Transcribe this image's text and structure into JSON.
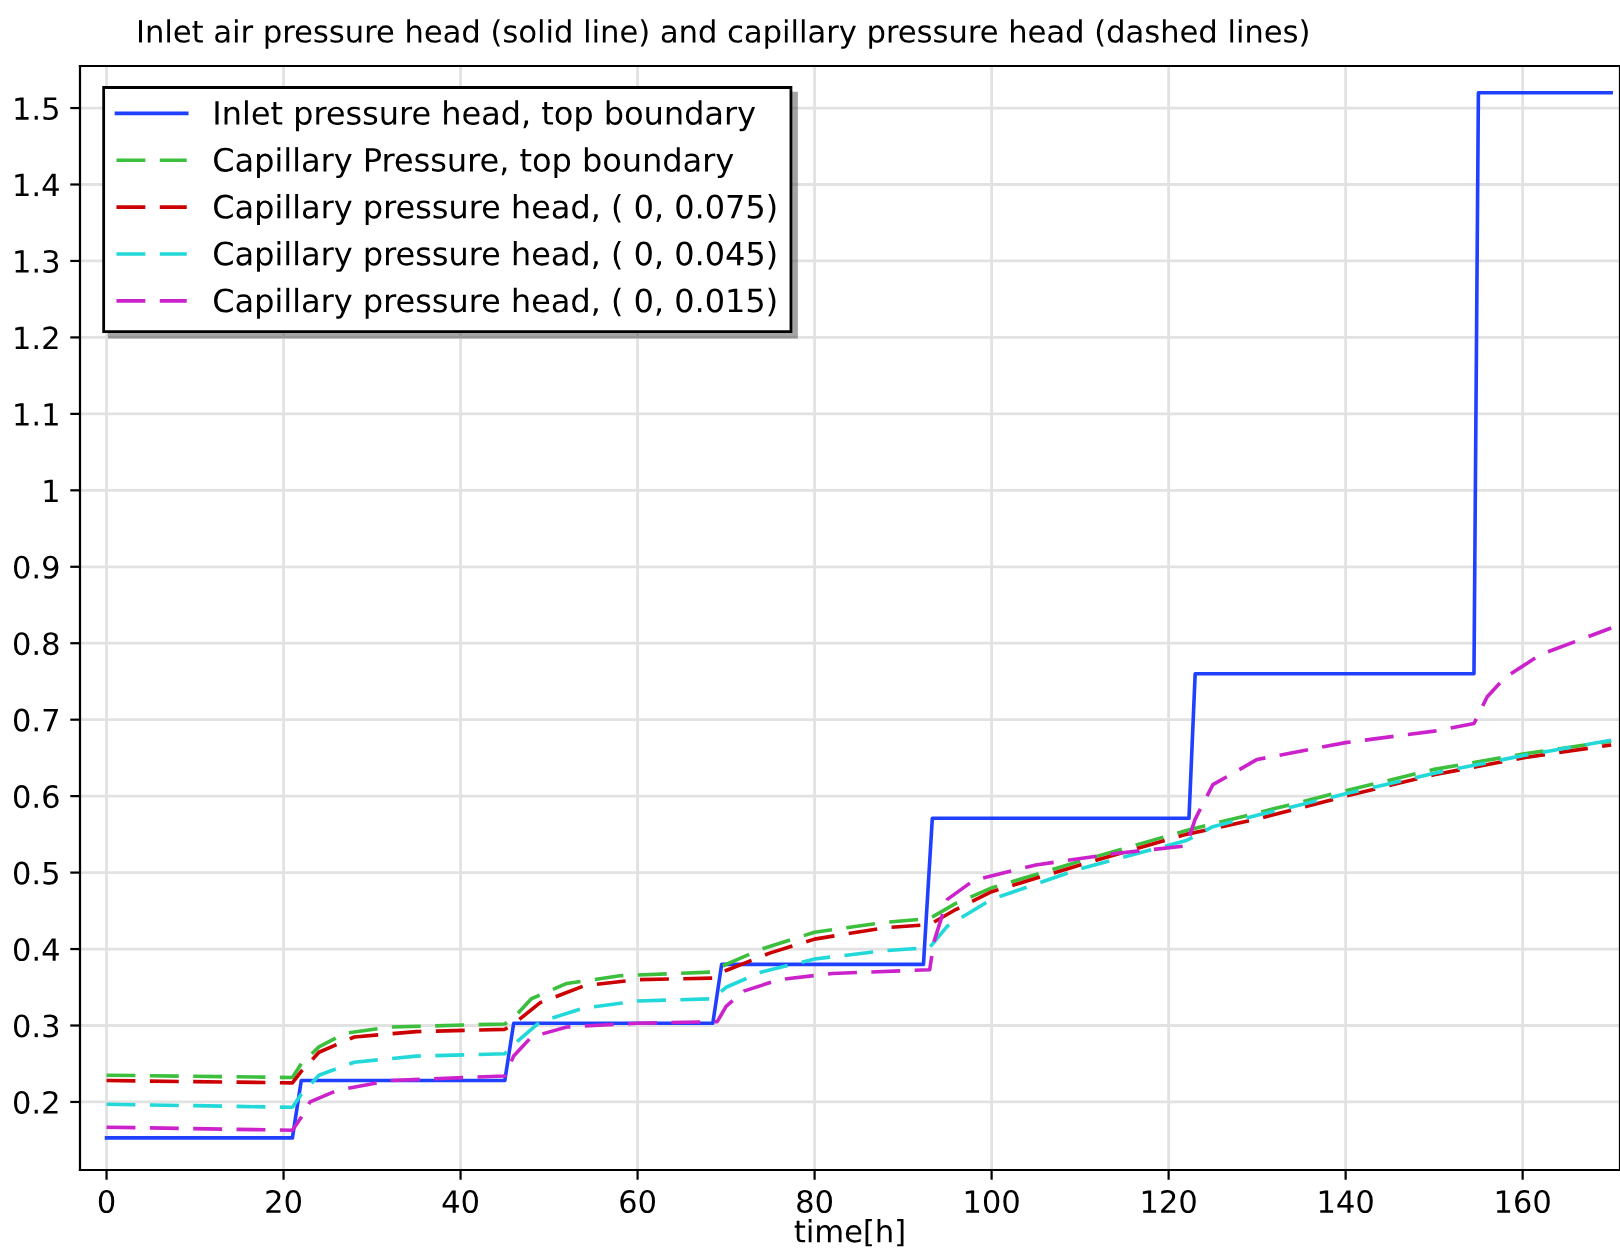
{
  "chart_data": {
    "type": "line",
    "title": "Inlet air pressure head (solid line) and capillary pressure head (dashed lines)",
    "xlabel": "time[h]",
    "xlim": [
      -3,
      171
    ],
    "ylim": [
      0.111,
      1.555
    ],
    "xticks": [
      0,
      20,
      40,
      60,
      80,
      100,
      120,
      140,
      160
    ],
    "yticks": [
      0.2,
      0.3,
      0.4,
      0.5,
      0.6,
      0.7,
      0.8,
      0.9,
      1,
      1.1,
      1.2,
      1.3,
      1.4,
      1.5
    ],
    "grid": true,
    "legend": "top left",
    "series": [
      {
        "name": "Inlet pressure head, top boundary",
        "color": "#2040ff",
        "line_style": "solid",
        "x": [
          0,
          21,
          22,
          45,
          46,
          68.5,
          69.5,
          92.3,
          93.3,
          122.3,
          123,
          154.5,
          155,
          170
        ],
        "values": [
          0.153,
          0.153,
          0.228,
          0.228,
          0.303,
          0.303,
          0.38,
          0.38,
          0.571,
          0.571,
          0.76,
          0.76,
          1.52,
          1.52
        ]
      },
      {
        "name": "Capillary Pressure, top boundary",
        "color": "#3cbf3c",
        "line_style": "dashed",
        "x": [
          0,
          21,
          22,
          24,
          27,
          32,
          45,
          46,
          48,
          52,
          58,
          68.5,
          70,
          74,
          80,
          88,
          93,
          96,
          100,
          110,
          122,
          130,
          140,
          150,
          160,
          170
        ],
        "values": [
          0.235,
          0.232,
          0.25,
          0.272,
          0.29,
          0.298,
          0.302,
          0.31,
          0.335,
          0.355,
          0.365,
          0.37,
          0.38,
          0.4,
          0.422,
          0.435,
          0.44,
          0.46,
          0.48,
          0.515,
          0.555,
          0.578,
          0.607,
          0.635,
          0.655,
          0.672
        ]
      },
      {
        "name": "Capillary pressure head, ( 0, 0.075)",
        "color": "#cc0000",
        "line_style": "dashed",
        "x": [
          0,
          21,
          22,
          24,
          28,
          35,
          45,
          46,
          49,
          54,
          60,
          68.5,
          70,
          75,
          80,
          88,
          93,
          96,
          100,
          110,
          122,
          130,
          140,
          150,
          160,
          170
        ],
        "values": [
          0.228,
          0.225,
          0.24,
          0.265,
          0.285,
          0.292,
          0.295,
          0.302,
          0.33,
          0.352,
          0.36,
          0.362,
          0.372,
          0.395,
          0.413,
          0.428,
          0.432,
          0.452,
          0.475,
          0.51,
          0.55,
          0.57,
          0.6,
          0.628,
          0.65,
          0.667
        ]
      },
      {
        "name": "Capillary pressure head, ( 0, 0.045)",
        "color": "#22d8d8",
        "line_style": "dashed",
        "x": [
          0,
          21,
          22,
          24,
          28,
          35,
          45,
          46,
          49,
          54,
          60,
          68.5,
          70,
          74,
          80,
          88,
          93,
          95,
          100,
          110,
          122,
          125,
          130,
          140,
          150,
          160,
          170
        ],
        "values": [
          0.197,
          0.193,
          0.21,
          0.235,
          0.252,
          0.26,
          0.263,
          0.275,
          0.305,
          0.323,
          0.332,
          0.335,
          0.35,
          0.37,
          0.387,
          0.398,
          0.402,
          0.43,
          0.465,
          0.505,
          0.542,
          0.56,
          0.575,
          0.603,
          0.63,
          0.653,
          0.673
        ]
      },
      {
        "name": "Capillary pressure head, ( 0, 0.015)",
        "color": "#cc22cc",
        "line_style": "dashed",
        "x": [
          0,
          21,
          22,
          23,
          26,
          32,
          45,
          46,
          48,
          52,
          60,
          69,
          70,
          72,
          76,
          82,
          93,
          93.5,
          95,
          98,
          105,
          114,
          122,
          123,
          125,
          130,
          140,
          150,
          154.5,
          156,
          158,
          162,
          170
        ],
        "values": [
          0.167,
          0.163,
          0.18,
          0.2,
          0.215,
          0.228,
          0.234,
          0.26,
          0.285,
          0.298,
          0.303,
          0.305,
          0.325,
          0.345,
          0.36,
          0.368,
          0.373,
          0.41,
          0.465,
          0.49,
          0.51,
          0.525,
          0.535,
          0.57,
          0.615,
          0.648,
          0.67,
          0.685,
          0.695,
          0.73,
          0.755,
          0.785,
          0.82
        ]
      }
    ]
  }
}
